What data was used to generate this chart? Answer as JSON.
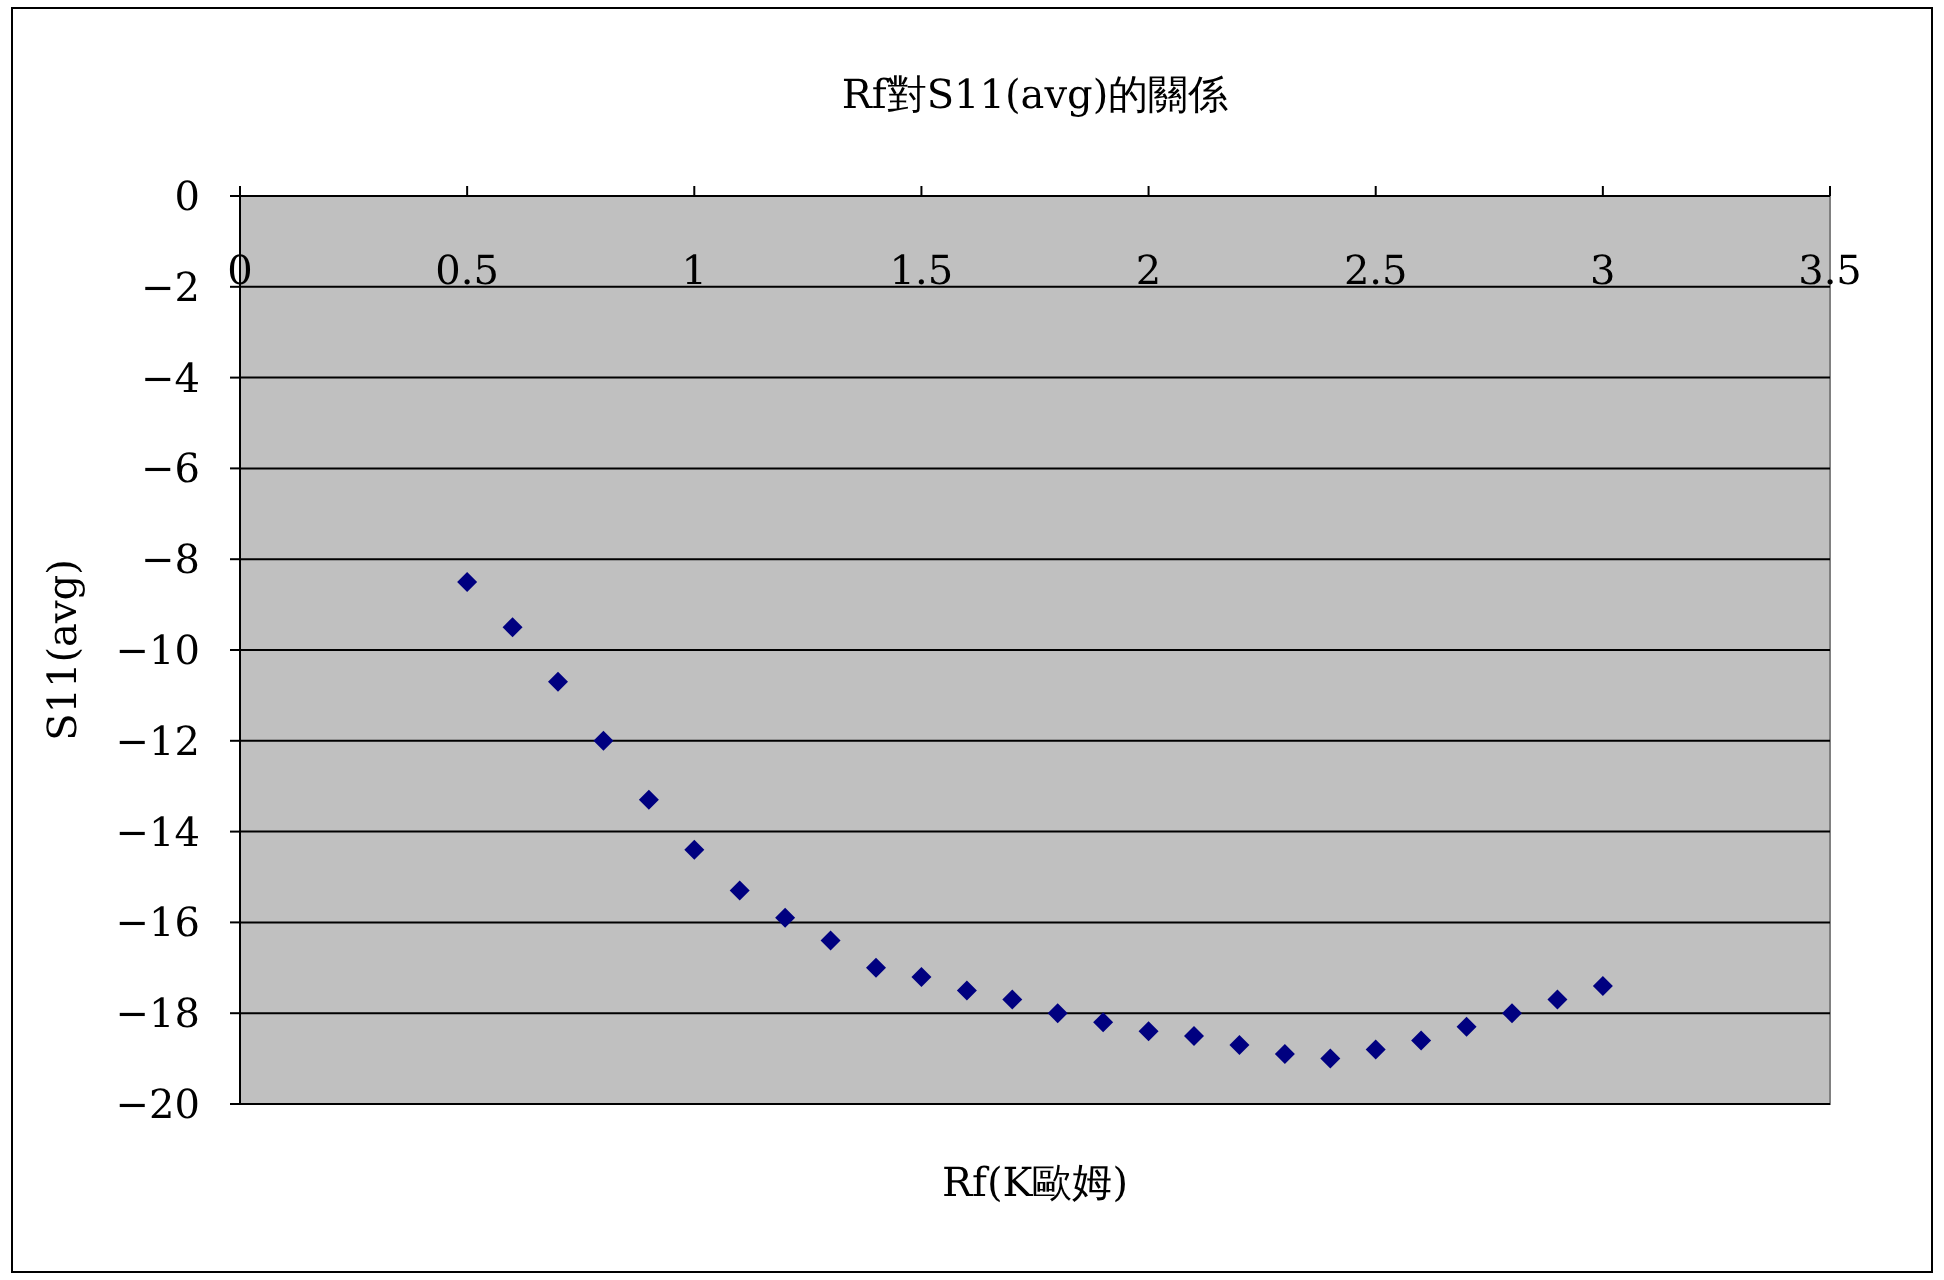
{
  "chart_data": {
    "type": "scatter",
    "title": "Rf對S11(avg)的關係",
    "xlabel": "Rf(K歐姆)",
    "ylabel": "S11(avg)",
    "marker": "diamond",
    "grid": "y",
    "xlim": [
      0,
      3.5
    ],
    "ylim": [
      -20,
      0
    ],
    "xticks": [
      0,
      0.5,
      1,
      1.5,
      2,
      2.5,
      3,
      3.5
    ],
    "yticks": [
      0,
      -2,
      -4,
      -6,
      -8,
      -10,
      -12,
      -14,
      -16,
      -18,
      -20
    ],
    "x": [
      0.5,
      0.6,
      0.7,
      0.8,
      0.9,
      1.0,
      1.1,
      1.2,
      1.3,
      1.4,
      1.5,
      1.6,
      1.7,
      1.8,
      1.9,
      2.0,
      2.1,
      2.2,
      2.3,
      2.4,
      2.5,
      2.6,
      2.7,
      2.8,
      2.9,
      3.0
    ],
    "series": [
      {
        "color": "#000080",
        "values": [
          -8.5,
          -9.5,
          -10.7,
          -12.0,
          -13.3,
          -14.4,
          -15.3,
          -15.9,
          -16.4,
          -17.0,
          -17.2,
          -17.5,
          -17.7,
          -18.0,
          -18.2,
          -18.4,
          -18.5,
          -18.7,
          -18.9,
          -19.0,
          -18.8,
          -18.6,
          -18.3,
          -18.0,
          -17.7,
          -17.4
        ]
      }
    ]
  }
}
